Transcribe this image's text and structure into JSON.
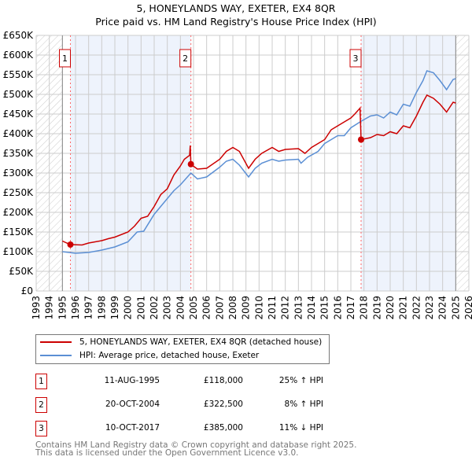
{
  "chart_data": {
    "type": "line",
    "title": "5, HONEYLANDS WAY, EXETER, EX4 8QR",
    "subtitle": "Price paid vs. HM Land Registry's House Price Index (HPI)",
    "xlim": [
      1993,
      2026
    ],
    "ylim": [
      0,
      650000
    ],
    "yticks": [
      "£0",
      "£50K",
      "£100K",
      "£150K",
      "£200K",
      "£250K",
      "£300K",
      "£350K",
      "£400K",
      "£450K",
      "£500K",
      "£550K",
      "£600K",
      "£650K"
    ],
    "xticks": [
      "1993",
      "1994",
      "1995",
      "1996",
      "1997",
      "1998",
      "1999",
      "2000",
      "2001",
      "2002",
      "2003",
      "2004",
      "2005",
      "2006",
      "2007",
      "2008",
      "2009",
      "2010",
      "2011",
      "2012",
      "2013",
      "2014",
      "2015",
      "2016",
      "2017",
      "2018",
      "2019",
      "2020",
      "2021",
      "2022",
      "2023",
      "2024",
      "2025",
      "2026"
    ],
    "grid": true,
    "series": [
      {
        "name": "5, HONEYLANDS WAY, EXETER, EX4 8QR (detached house)",
        "color": "#cc0000",
        "x": [
          1995.0,
          1995.6,
          1996.5,
          1997,
          1998,
          1998.5,
          1999,
          2000,
          2000.5,
          2001,
          2001.5,
          2002,
          2002.5,
          2003,
          2003.5,
          2004,
          2004.3,
          2004.7,
          2004.75,
          2004.8,
          2005.3,
          2006,
          2007,
          2007.5,
          2008,
          2008.5,
          2009.2,
          2009.7,
          2010.2,
          2011,
          2011.5,
          2012,
          2013,
          2013.5,
          2014,
          2014.5,
          2015,
          2015.5,
          2016,
          2016.5,
          2017,
          2017.3,
          2017.7,
          2017.78,
          2018.5,
          2019,
          2019.5,
          2020,
          2020.5,
          2021,
          2021.5,
          2022,
          2022.5,
          2022.8,
          2023.3,
          2023.8,
          2024.3,
          2024.8,
          2025
        ],
        "y": [
          127,
          118,
          117,
          122,
          128,
          133,
          137,
          150,
          165,
          185,
          190,
          215,
          245,
          260,
          295,
          318,
          335,
          345,
          370,
          322,
          310,
          312,
          335,
          355,
          365,
          355,
          312,
          335,
          350,
          365,
          355,
          360,
          362,
          350,
          365,
          375,
          385,
          410,
          420,
          430,
          440,
          450,
          465,
          385,
          390,
          398,
          395,
          405,
          400,
          420,
          415,
          445,
          480,
          498,
          490,
          475,
          455,
          480,
          478
        ]
      },
      {
        "name": "HPI: Average price, detached house, Exeter",
        "color": "#5b8fd4",
        "x": [
          1995,
          1996,
          1997,
          1998,
          1999,
          2000,
          2000.7,
          2001.2,
          2002,
          2002.5,
          2003,
          2003.5,
          2004,
          2004.8,
          2005.3,
          2006,
          2007,
          2007.5,
          2008,
          2008.5,
          2009.2,
          2009.7,
          2010.2,
          2011,
          2011.5,
          2012,
          2013,
          2013.2,
          2013.7,
          2014.5,
          2015,
          2015.5,
          2016,
          2016.5,
          2017,
          2017.8,
          2018.5,
          2019,
          2019.5,
          2020,
          2020.5,
          2021,
          2021.5,
          2022,
          2022.5,
          2022.8,
          2023.3,
          2023.8,
          2024.3,
          2024.8,
          2025
        ],
        "y": [
          100,
          96,
          98,
          104,
          112,
          125,
          150,
          152,
          195,
          215,
          235,
          255,
          270,
          300,
          285,
          290,
          315,
          330,
          335,
          320,
          290,
          312,
          325,
          335,
          330,
          333,
          335,
          325,
          340,
          355,
          375,
          385,
          395,
          395,
          415,
          432,
          445,
          448,
          440,
          455,
          448,
          475,
          470,
          505,
          535,
          560,
          555,
          535,
          512,
          538,
          540
        ]
      }
    ],
    "y_units": "thousands GBP",
    "sales": [
      {
        "num": "1",
        "x": 1995.61,
        "y": 118,
        "date": "11-AUG-1995",
        "price": "£118,000",
        "hpi": "25% ↑ HPI"
      },
      {
        "num": "2",
        "x": 2004.8,
        "y": 322.5,
        "date": "20-OCT-2004",
        "price": "£322,500",
        "hpi": "8% ↑ HPI"
      },
      {
        "num": "3",
        "x": 2017.78,
        "y": 385,
        "date": "10-OCT-2017",
        "price": "£385,000",
        "hpi": "11% ↓ HPI"
      }
    ]
  },
  "footer": {
    "line1": "Contains HM Land Registry data © Crown copyright and database right 2025.",
    "line2": "This data is licensed under the Open Government Licence v3.0."
  }
}
